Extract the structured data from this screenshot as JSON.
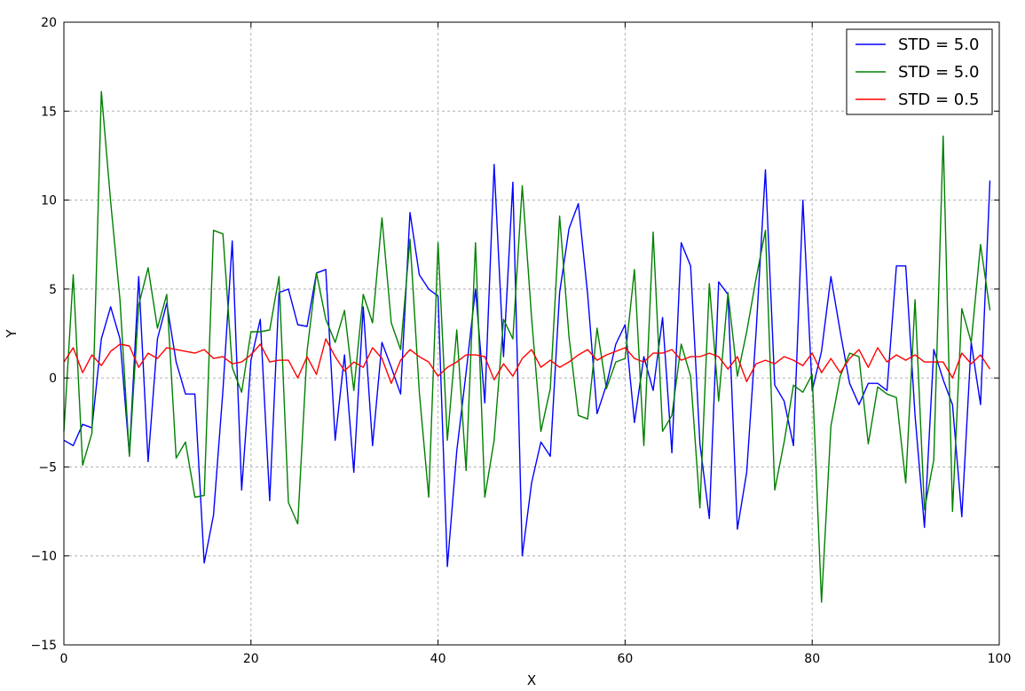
{
  "chart_data": {
    "type": "line",
    "xlabel": "X",
    "ylabel": "Y",
    "xlim": [
      0,
      100
    ],
    "ylim": [
      -15,
      20
    ],
    "xticks": [
      0,
      20,
      40,
      60,
      80,
      100
    ],
    "yticks": [
      -15,
      -10,
      -5,
      0,
      5,
      10,
      15,
      20
    ],
    "grid": true,
    "legend_position": "upper right",
    "x": [
      0,
      1,
      2,
      3,
      4,
      5,
      6,
      7,
      8,
      9,
      10,
      11,
      12,
      13,
      14,
      15,
      16,
      17,
      18,
      19,
      20,
      21,
      22,
      23,
      24,
      25,
      26,
      27,
      28,
      29,
      30,
      31,
      32,
      33,
      34,
      35,
      36,
      37,
      38,
      39,
      40,
      41,
      42,
      43,
      44,
      45,
      46,
      47,
      48,
      49,
      50,
      51,
      52,
      53,
      54,
      55,
      56,
      57,
      58,
      59,
      60,
      61,
      62,
      63,
      64,
      65,
      66,
      67,
      68,
      69,
      70,
      71,
      72,
      73,
      74,
      75,
      76,
      77,
      78,
      79,
      80,
      81,
      82,
      83,
      84,
      85,
      86,
      87,
      88,
      89,
      90,
      91,
      92,
      93,
      94,
      95,
      96,
      97,
      98,
      99
    ],
    "series": [
      {
        "name": "STD = 5.0",
        "color": "#0000ff",
        "values": [
          -3.5,
          -3.8,
          -2.6,
          -2.8,
          2.2,
          4.0,
          2.2,
          -4.3,
          5.7,
          -4.7,
          2.2,
          4.2,
          0.9,
          -0.9,
          -0.9,
          -10.4,
          -7.7,
          -0.7,
          7.7,
          -6.3,
          1.0,
          3.3,
          -6.9,
          4.8,
          5.0,
          3.0,
          2.9,
          5.9,
          6.1,
          -3.5,
          1.3,
          -5.3,
          4.0,
          -3.8,
          2.0,
          0.6,
          -0.9,
          9.3,
          5.8,
          5.0,
          4.6,
          -10.6,
          -4.1,
          0.3,
          5.0,
          -1.4,
          12.0,
          1.2,
          11.0,
          -10.0,
          -5.9,
          -3.6,
          -4.4,
          4.8,
          8.4,
          9.8,
          4.7,
          -2.0,
          -0.4,
          1.9,
          3.0,
          -2.5,
          1.2,
          -0.7,
          3.4,
          -4.2,
          7.6,
          6.3,
          -3.7,
          -7.9,
          5.4,
          4.7,
          -8.5,
          -5.3,
          2.6,
          11.7,
          -0.4,
          -1.3,
          -3.8,
          10.0,
          -0.7,
          1.5,
          5.7,
          2.6,
          -0.3,
          -1.5,
          -0.3,
          -0.3,
          -0.7,
          6.3,
          6.3,
          -2.1,
          -8.4,
          1.6,
          -0.1,
          -1.5,
          -7.8,
          2.0,
          -1.5,
          11.1
        ]
      },
      {
        "name": "STD = 5.0",
        "color": "#008000",
        "values": [
          -3.0,
          5.8,
          -4.9,
          -3.1,
          16.1,
          9.9,
          4.4,
          -4.4,
          4.1,
          6.2,
          2.8,
          4.7,
          -4.5,
          -3.6,
          -6.7,
          -6.6,
          8.3,
          8.1,
          0.6,
          -0.8,
          2.6,
          2.6,
          2.7,
          5.7,
          -7.0,
          -8.2,
          1.5,
          5.9,
          3.3,
          2.0,
          3.8,
          -0.7,
          4.7,
          3.1,
          9.0,
          3.1,
          1.6,
          7.8,
          -0.8,
          -6.7,
          7.6,
          -3.5,
          2.7,
          -5.2,
          7.6,
          -6.7,
          -3.5,
          3.3,
          2.2,
          10.8,
          3.4,
          -3.0,
          -0.6,
          9.1,
          2.3,
          -2.1,
          -2.3,
          2.8,
          -0.6,
          0.9,
          1.1,
          6.1,
          -3.8,
          8.2,
          -3.0,
          -2.1,
          1.9,
          0.1,
          -7.3,
          5.3,
          -1.3,
          4.8,
          0.1,
          2.6,
          5.6,
          8.3,
          -6.3,
          -3.6,
          -0.4,
          -0.8,
          0.2,
          -12.6,
          -2.7,
          0.1,
          1.4,
          1.2,
          -3.7,
          -0.5,
          -0.9,
          -1.1,
          -5.9,
          4.4,
          -7.4,
          -4.6,
          13.6,
          -7.5,
          3.9,
          2.0,
          7.5,
          3.8
        ]
      },
      {
        "name": "STD = 0.5",
        "color": "#ff0000",
        "values": [
          0.9,
          1.7,
          0.3,
          1.3,
          0.7,
          1.5,
          1.9,
          1.8,
          0.6,
          1.4,
          1.1,
          1.7,
          1.6,
          1.5,
          1.4,
          1.6,
          1.1,
          1.2,
          0.8,
          0.9,
          1.3,
          1.9,
          0.9,
          1.0,
          1.0,
          0.0,
          1.2,
          0.2,
          2.2,
          1.2,
          0.4,
          0.9,
          0.6,
          1.7,
          1.1,
          -0.3,
          1.0,
          1.6,
          1.2,
          0.9,
          0.1,
          0.6,
          0.9,
          1.3,
          1.3,
          1.2,
          -0.1,
          0.8,
          0.1,
          1.1,
          1.6,
          0.6,
          1.0,
          0.6,
          0.9,
          1.3,
          1.6,
          1.0,
          1.3,
          1.5,
          1.7,
          1.1,
          0.9,
          1.4,
          1.4,
          1.6,
          1.0,
          1.2,
          1.2,
          1.4,
          1.2,
          0.5,
          1.2,
          -0.2,
          0.8,
          1.0,
          0.8,
          1.2,
          1.0,
          0.7,
          1.4,
          0.3,
          1.1,
          0.3,
          1.1,
          1.6,
          0.6,
          1.7,
          0.9,
          1.3,
          1.0,
          1.3,
          0.9,
          0.9,
          0.9,
          0.0,
          1.4,
          0.8,
          1.3,
          0.5
        ]
      }
    ]
  }
}
